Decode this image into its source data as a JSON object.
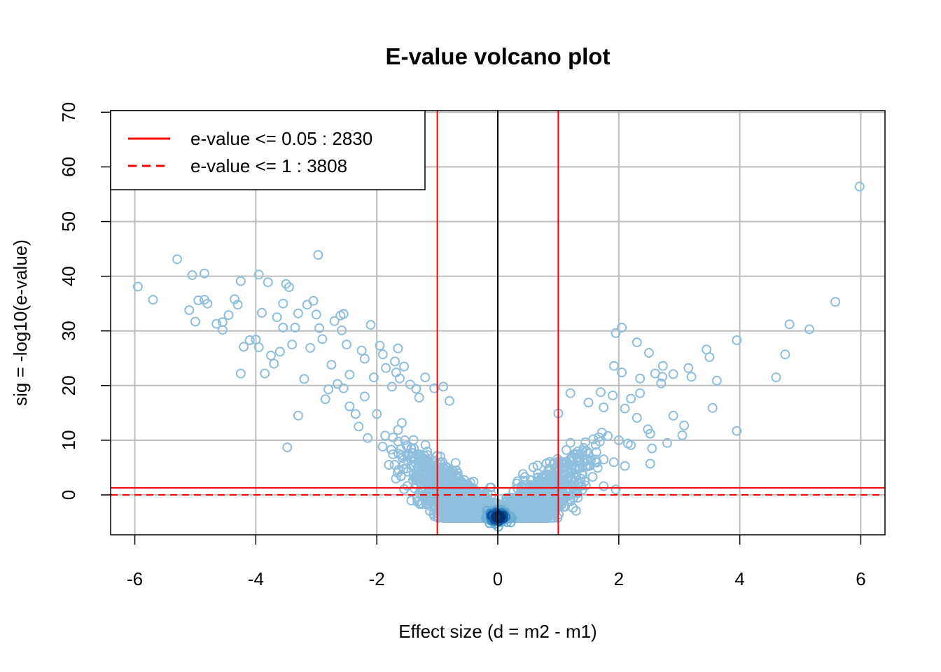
{
  "chart_data": {
    "type": "scatter",
    "title": "E-value volcano plot",
    "xlabel": "Effect size (d = m2 - m1)",
    "ylabel": "sig = -log10(e-value)",
    "xlim": [
      -6.4,
      6.4
    ],
    "ylim": [
      -7.3,
      70.3
    ],
    "x_ticks": [
      -6,
      -4,
      -2,
      0,
      2,
      4,
      6
    ],
    "x_tick_labels": [
      "-6",
      "-4",
      "-2",
      "0",
      "2",
      "4",
      "6"
    ],
    "y_ticks": [
      0,
      10,
      20,
      30,
      40,
      50,
      60,
      70
    ],
    "y_tick_labels": [
      "0",
      "10",
      "20",
      "30",
      "40",
      "50",
      "60",
      "70"
    ],
    "grid": true,
    "legend_position": "top-left",
    "legend": [
      {
        "label": "e-value <= 0.05 : 2830",
        "color": "#ff0000",
        "line_style": "solid"
      },
      {
        "label": "e-value <= 1 : 3808",
        "color": "#ff0000",
        "line_style": "dashed"
      }
    ],
    "reference_lines": {
      "vertical": [
        {
          "x": -1,
          "color": "#ff0000"
        },
        {
          "x": 0,
          "color": "#000000"
        },
        {
          "x": 1,
          "color": "#ff0000"
        }
      ],
      "horizontal": [
        {
          "y": 1.3,
          "color": "#ff0000",
          "style": "solid"
        },
        {
          "y": 0,
          "color": "#ff0000",
          "style": "dashed"
        }
      ]
    },
    "colors": {
      "point_stroke": "#8fbfdc",
      "density_core": "#08306b",
      "grid": "#bdbdbd",
      "axis": "#000000"
    },
    "outlier_points": [
      {
        "x": -5.95,
        "y": 38.1
      },
      {
        "x": -5.7,
        "y": 35.7
      },
      {
        "x": -5.3,
        "y": 43.1
      },
      {
        "x": -5.1,
        "y": 33.8
      },
      {
        "x": -5.05,
        "y": 40.2
      },
      {
        "x": -5.0,
        "y": 31.7
      },
      {
        "x": -4.95,
        "y": 35.6
      },
      {
        "x": -4.85,
        "y": 40.5
      },
      {
        "x": -4.85,
        "y": 35.7
      },
      {
        "x": -4.8,
        "y": 35.0
      },
      {
        "x": -4.65,
        "y": 31.3
      },
      {
        "x": -4.55,
        "y": 30.2
      },
      {
        "x": -4.55,
        "y": 31.6
      },
      {
        "x": -4.45,
        "y": 32.9
      },
      {
        "x": -4.35,
        "y": 35.8
      },
      {
        "x": -4.3,
        "y": 34.8
      },
      {
        "x": -4.25,
        "y": 39.1
      },
      {
        "x": -4.25,
        "y": 22.2
      },
      {
        "x": -4.2,
        "y": 27.1
      },
      {
        "x": -4.1,
        "y": 28.3
      },
      {
        "x": -4.0,
        "y": 28.4
      },
      {
        "x": -3.95,
        "y": 27.0
      },
      {
        "x": -3.9,
        "y": 33.3
      },
      {
        "x": -3.85,
        "y": 22.2
      },
      {
        "x": -3.8,
        "y": 38.9
      },
      {
        "x": -3.95,
        "y": 40.3
      },
      {
        "x": -3.75,
        "y": 25.5
      },
      {
        "x": -3.7,
        "y": 24.0
      },
      {
        "x": -3.65,
        "y": 32.5
      },
      {
        "x": -3.6,
        "y": 26.2
      },
      {
        "x": -3.55,
        "y": 30.6
      },
      {
        "x": -3.55,
        "y": 35.0
      },
      {
        "x": -3.5,
        "y": 38.6
      },
      {
        "x": -3.45,
        "y": 38.0
      },
      {
        "x": -3.4,
        "y": 27.5
      },
      {
        "x": -3.35,
        "y": 30.6
      },
      {
        "x": -3.3,
        "y": 14.5
      },
      {
        "x": -3.3,
        "y": 33.2
      },
      {
        "x": -3.2,
        "y": 21.2
      },
      {
        "x": -3.15,
        "y": 34.8
      },
      {
        "x": -3.1,
        "y": 26.9
      },
      {
        "x": -3.05,
        "y": 35.5
      },
      {
        "x": -3.0,
        "y": 33.0
      },
      {
        "x": -2.95,
        "y": 30.5
      },
      {
        "x": -2.9,
        "y": 28.5
      },
      {
        "x": -2.85,
        "y": 17.5
      },
      {
        "x": -2.8,
        "y": 19.3
      },
      {
        "x": -2.75,
        "y": 23.8
      },
      {
        "x": -2.7,
        "y": 31.8
      },
      {
        "x": -2.65,
        "y": 20.3
      },
      {
        "x": -2.6,
        "y": 32.8
      },
      {
        "x": -2.58,
        "y": 30.1
      },
      {
        "x": -2.55,
        "y": 33.1
      },
      {
        "x": -2.5,
        "y": 27.5
      },
      {
        "x": -2.97,
        "y": 43.9
      },
      {
        "x": -3.48,
        "y": 8.7
      },
      {
        "x": -2.55,
        "y": 19.5
      },
      {
        "x": -2.45,
        "y": 22.0
      },
      {
        "x": -2.45,
        "y": 16.2
      },
      {
        "x": -2.35,
        "y": 14.8
      },
      {
        "x": -2.3,
        "y": 12.5
      },
      {
        "x": -2.25,
        "y": 26.4
      },
      {
        "x": -2.2,
        "y": 24.9
      },
      {
        "x": -2.2,
        "y": 18.0
      },
      {
        "x": -2.15,
        "y": 10.4
      },
      {
        "x": -2.1,
        "y": 31.1
      },
      {
        "x": -2.05,
        "y": 21.5
      },
      {
        "x": -2.0,
        "y": 14.8
      },
      {
        "x": -1.95,
        "y": 27.3
      },
      {
        "x": -1.9,
        "y": 25.7
      },
      {
        "x": -1.85,
        "y": 23.2
      },
      {
        "x": -1.8,
        "y": 5.5
      },
      {
        "x": -1.75,
        "y": 19.8
      },
      {
        "x": -1.65,
        "y": 26.8
      },
      {
        "x": -1.6,
        "y": 3.5
      },
      {
        "x": -1.55,
        "y": 23.5
      },
      {
        "x": -1.45,
        "y": 20.2
      },
      {
        "x": -1.2,
        "y": 21.5
      },
      {
        "x": -1.05,
        "y": 19.5
      },
      {
        "x": -0.9,
        "y": 19.8
      },
      {
        "x": -0.8,
        "y": 17.2
      },
      {
        "x": -1.7,
        "y": 24.4
      },
      {
        "x": -1.68,
        "y": 22.4
      },
      {
        "x": -1.62,
        "y": 21.3
      },
      {
        "x": -1.35,
        "y": 19.4
      },
      {
        "x": -1.3,
        "y": 17.8
      },
      {
        "x": 1.0,
        "y": 14.9
      },
      {
        "x": 1.2,
        "y": 18.6
      },
      {
        "x": 1.5,
        "y": 16.9
      },
      {
        "x": 1.7,
        "y": 18.8
      },
      {
        "x": 1.75,
        "y": 16.0
      },
      {
        "x": 1.9,
        "y": 18.2
      },
      {
        "x": 1.95,
        "y": 29.6
      },
      {
        "x": 2.05,
        "y": 30.6
      },
      {
        "x": 1.92,
        "y": 23.6
      },
      {
        "x": 2.05,
        "y": 22.4
      },
      {
        "x": 2.1,
        "y": 15.8
      },
      {
        "x": 2.2,
        "y": 17.6
      },
      {
        "x": 2.3,
        "y": 14.1
      },
      {
        "x": 2.35,
        "y": 21.3
      },
      {
        "x": 2.35,
        "y": 18.6
      },
      {
        "x": 2.3,
        "y": 27.9
      },
      {
        "x": 2.5,
        "y": 26.0
      },
      {
        "x": 2.6,
        "y": 22.2
      },
      {
        "x": 2.7,
        "y": 20.4
      },
      {
        "x": 2.72,
        "y": 21.6
      },
      {
        "x": 2.73,
        "y": 23.6
      },
      {
        "x": 2.8,
        "y": 9.5
      },
      {
        "x": 2.9,
        "y": 22.1
      },
      {
        "x": 2.9,
        "y": 14.5
      },
      {
        "x": 3.05,
        "y": 10.9
      },
      {
        "x": 3.08,
        "y": 12.7
      },
      {
        "x": 3.15,
        "y": 23.2
      },
      {
        "x": 3.2,
        "y": 21.6
      },
      {
        "x": 3.45,
        "y": 26.6
      },
      {
        "x": 3.5,
        "y": 25.2
      },
      {
        "x": 3.55,
        "y": 15.9
      },
      {
        "x": 3.62,
        "y": 20.9
      },
      {
        "x": 3.95,
        "y": 28.3
      },
      {
        "x": 3.95,
        "y": 11.7
      },
      {
        "x": 4.6,
        "y": 21.5
      },
      {
        "x": 4.75,
        "y": 25.7
      },
      {
        "x": 4.82,
        "y": 31.2
      },
      {
        "x": 5.15,
        "y": 30.3
      },
      {
        "x": 5.58,
        "y": 35.3
      },
      {
        "x": 5.98,
        "y": 56.4
      },
      {
        "x": 2.48,
        "y": 12.0
      },
      {
        "x": 2.52,
        "y": 11.2
      },
      {
        "x": 2.55,
        "y": 8.5
      },
      {
        "x": 2.52,
        "y": 5.7
      },
      {
        "x": 1.95,
        "y": 1.0
      },
      {
        "x": 1.75,
        "y": 1.6
      },
      {
        "x": 2.0,
        "y": 10.0
      },
      {
        "x": 2.2,
        "y": 9.1
      },
      {
        "x": 2.1,
        "y": 5.3
      },
      {
        "x": 2.15,
        "y": 9.4
      }
    ]
  }
}
